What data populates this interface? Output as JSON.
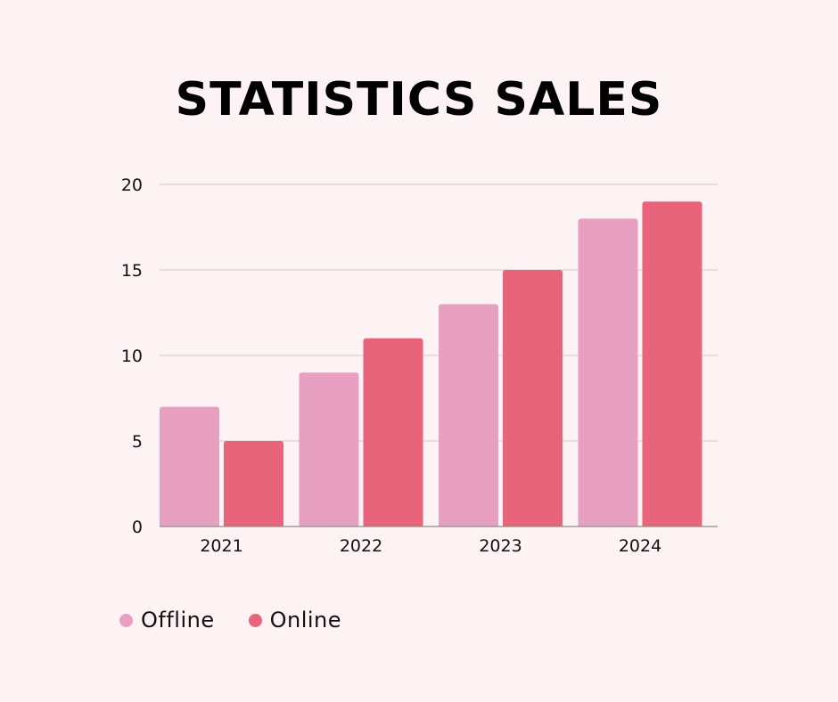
{
  "chart_data": {
    "type": "bar",
    "title": "STATISTICS SALES",
    "categories": [
      "2021",
      "2022",
      "2023",
      "2024"
    ],
    "series": [
      {
        "name": "Offline",
        "color": "#e8a0c0",
        "values": [
          7,
          9,
          13,
          18
        ]
      },
      {
        "name": "Online",
        "color": "#e8647b",
        "values": [
          5,
          11,
          15,
          19
        ]
      }
    ],
    "yticks": [
      "0",
      "5",
      "10",
      "15",
      "20"
    ],
    "ylim": [
      0,
      20
    ],
    "grid": true,
    "legend": "bottom-left"
  }
}
